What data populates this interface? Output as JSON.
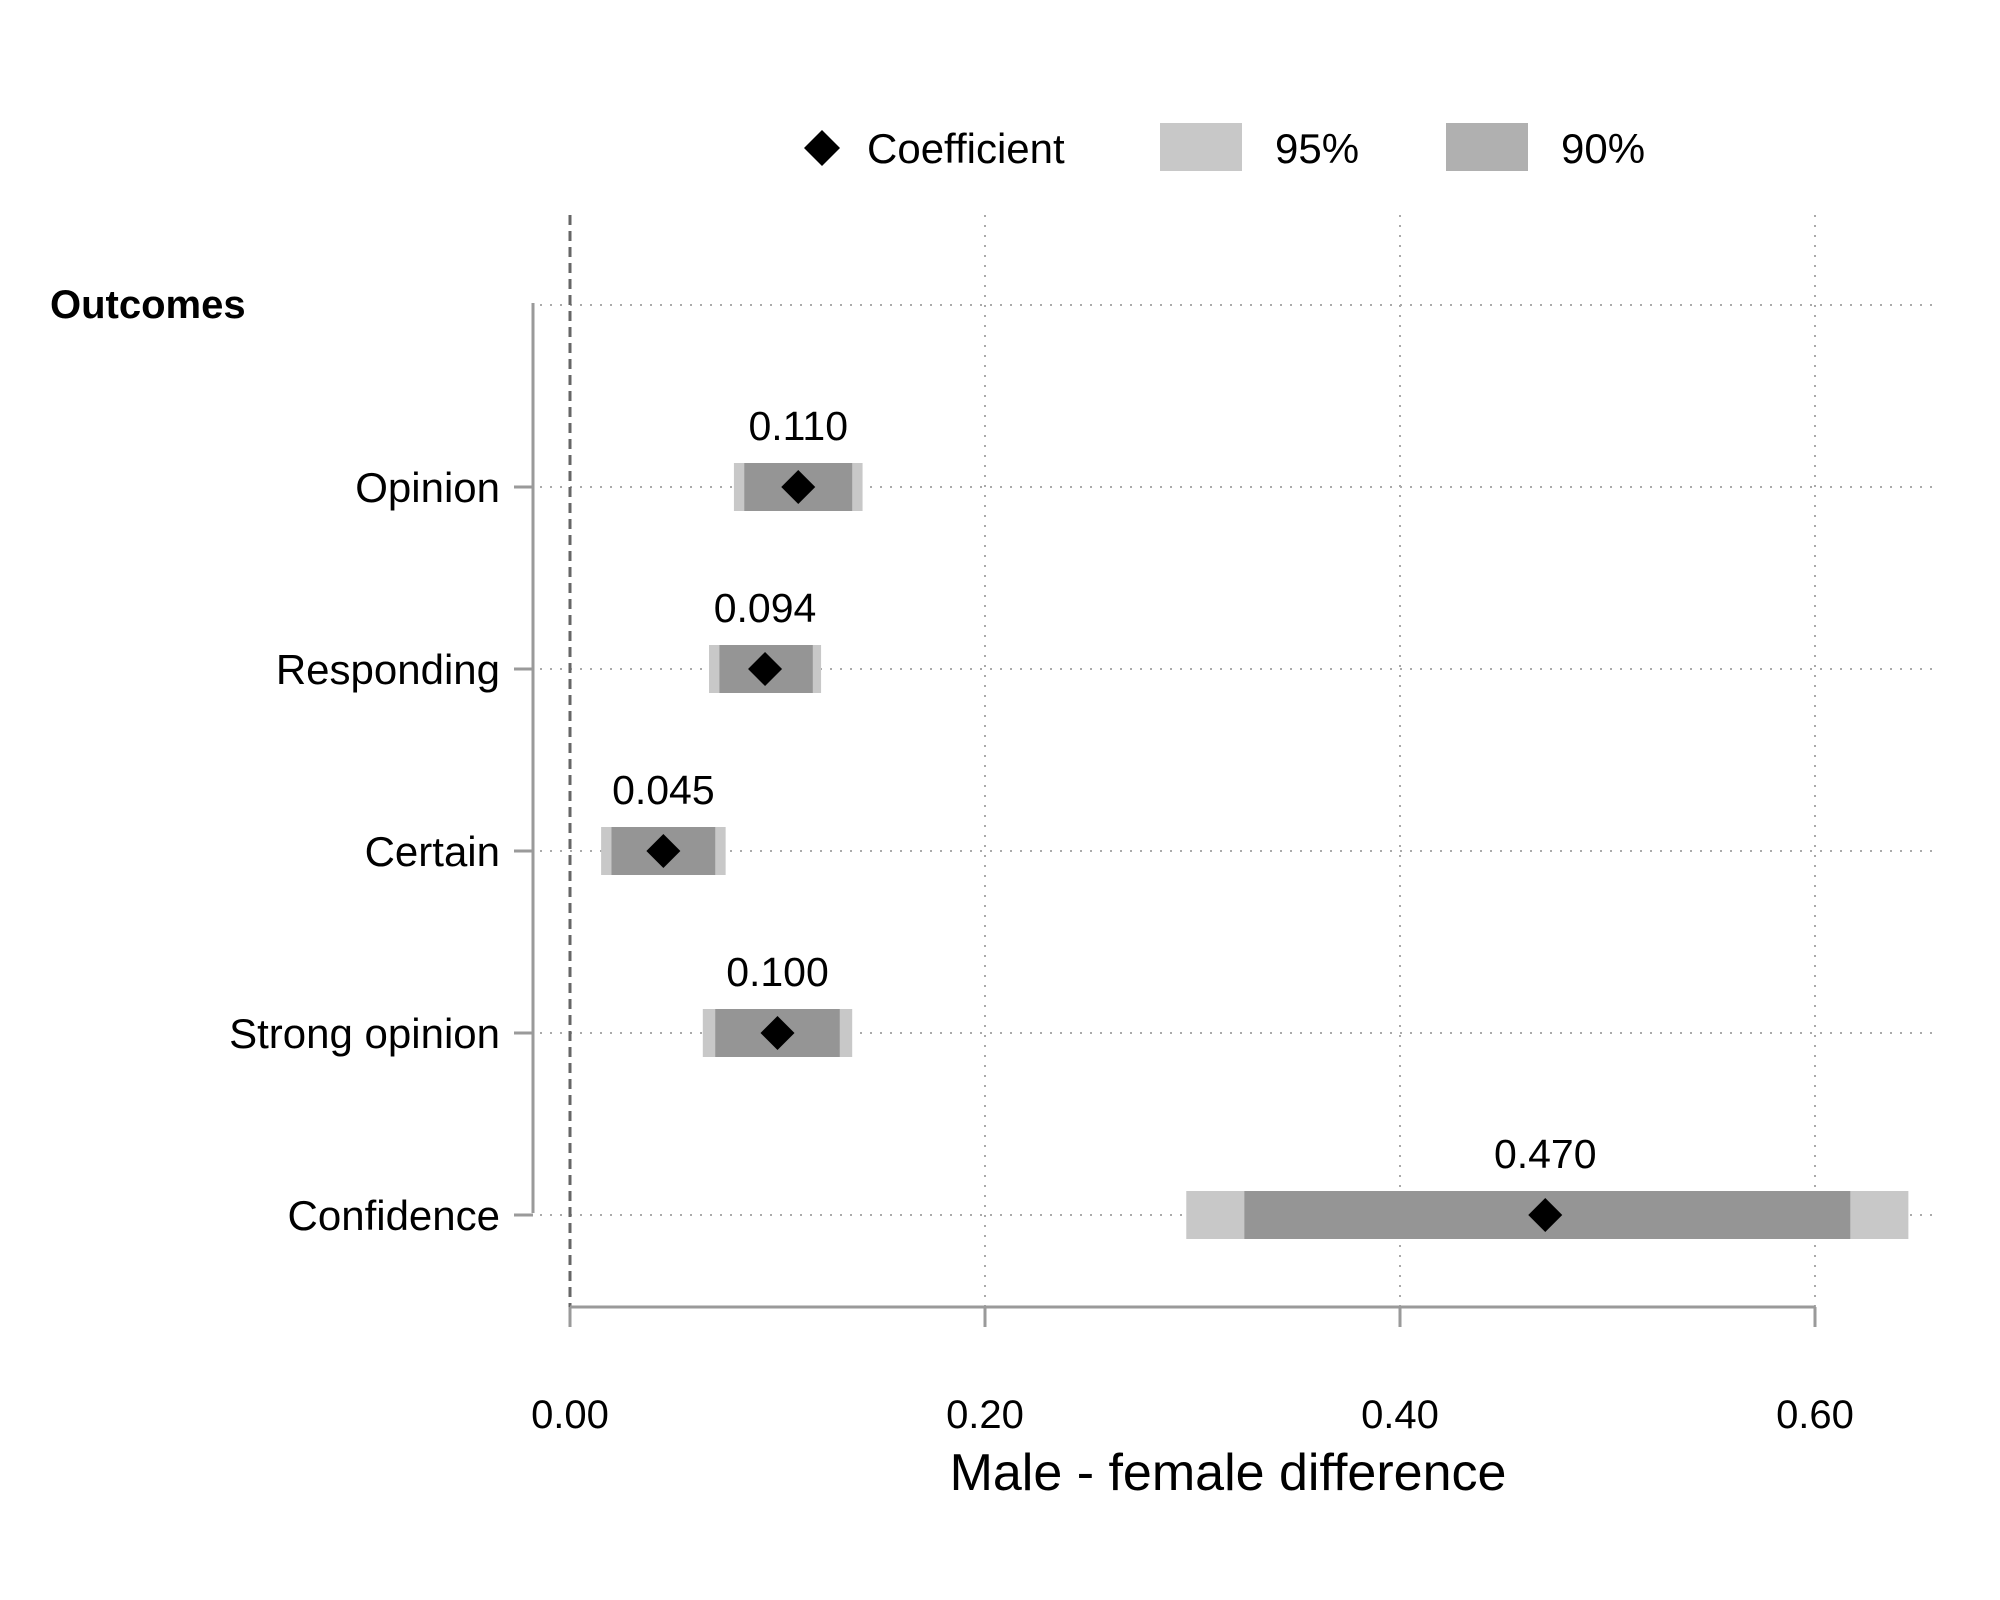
{
  "chart_data": {
    "type": "coefficient_plot",
    "xlabel": "Male - female difference",
    "group_title": "Outcomes",
    "xlim": [
      0,
      0.66
    ],
    "xticks": [
      0.0,
      0.2,
      0.4,
      0.6
    ],
    "xtick_labels": [
      "0.00",
      "0.20",
      "0.40",
      "0.60"
    ],
    "reference_line": 0.0,
    "grid": true,
    "legend_position": "top",
    "legend": [
      {
        "key": "coef",
        "label": "Coefficient"
      },
      {
        "key": "ci95",
        "label": "95%"
      },
      {
        "key": "ci90",
        "label": "90%"
      }
    ],
    "colors": {
      "ci95": "#c8c8c8",
      "ci90": "#959595",
      "coef": "#000000",
      "legend_ci90": "#b0b0b0",
      "grid": "#aaaaaa",
      "axis": "#9a9a9a"
    },
    "rows": [
      {
        "label": "Opinion",
        "coef": 0.11,
        "coef_label": "0.110",
        "ci95": [
          0.079,
          0.141
        ],
        "ci90": [
          0.084,
          0.136
        ]
      },
      {
        "label": "Responding",
        "coef": 0.094,
        "coef_label": "0.094",
        "ci95": [
          0.067,
          0.121
        ],
        "ci90": [
          0.072,
          0.117
        ]
      },
      {
        "label": "Certain",
        "coef": 0.045,
        "coef_label": "0.045",
        "ci95": [
          0.015,
          0.075
        ],
        "ci90": [
          0.02,
          0.07
        ]
      },
      {
        "label": "Strong opinion",
        "coef": 0.1,
        "coef_label": "0.100",
        "ci95": [
          0.064,
          0.136
        ],
        "ci90": [
          0.07,
          0.13
        ]
      },
      {
        "label": "Confidence",
        "coef": 0.47,
        "coef_label": "0.470",
        "ci95": [
          0.297,
          0.645
        ],
        "ci90": [
          0.325,
          0.617
        ]
      }
    ]
  }
}
